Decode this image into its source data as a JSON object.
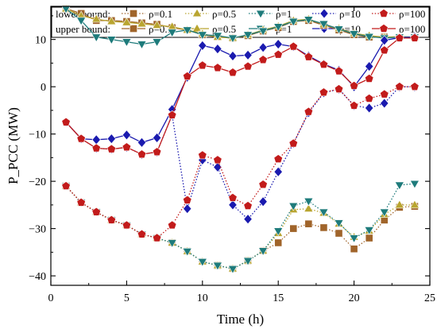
{
  "chart_data": {
    "type": "line",
    "xlabel": "Time (h)",
    "ylabel": "P_PCC (MW)",
    "xlim": [
      0,
      25
    ],
    "ylim": [
      -42,
      17
    ],
    "xticks": [
      0,
      5,
      10,
      15,
      20,
      25
    ],
    "yticks": [
      -40,
      -30,
      -20,
      -10,
      0,
      10
    ],
    "grid": false,
    "legend_position": "top",
    "legend": {
      "lower_label": "lower bound:",
      "upper_label": "upper bound:"
    },
    "x": [
      1,
      2,
      3,
      4,
      5,
      6,
      7,
      8,
      9,
      10,
      11,
      12,
      13,
      14,
      15,
      16,
      17,
      18,
      19,
      20,
      21,
      22,
      23,
      24
    ],
    "series": [
      {
        "name": "ρ=0.1",
        "group": "lower",
        "style": "dotted",
        "marker": "square",
        "color": "#A0642A",
        "values": [
          -21,
          -24.5,
          -26.5,
          -28.2,
          -29.3,
          -31.2,
          -32,
          -33,
          -34.8,
          -37,
          -37.8,
          -38.5,
          -36.8,
          -34.7,
          -33,
          -30,
          -29,
          -29.8,
          -31,
          -34.3,
          -32,
          -28.2,
          -25.5,
          -25.3
        ]
      },
      {
        "name": "ρ=0.5",
        "group": "lower",
        "style": "dotted",
        "marker": "triangle-up",
        "color": "#B9A530",
        "values": [
          -21,
          -24.5,
          -26.5,
          -28.2,
          -29.3,
          -31.2,
          -32,
          -33,
          -34.8,
          -37,
          -37.8,
          -38.5,
          -36.8,
          -34.7,
          -31,
          -26,
          -25.8,
          -26.7,
          -29,
          -31.8,
          -30.5,
          -27,
          -25,
          -25
        ]
      },
      {
        "name": "ρ=1",
        "group": "lower",
        "style": "dotted",
        "marker": "triangle-down",
        "color": "#1E7B7B",
        "values": [
          -21,
          -24.5,
          -26.5,
          -28.2,
          -29.3,
          -31.2,
          -32,
          -33,
          -34.8,
          -37,
          -37.8,
          -38.5,
          -36.8,
          -34.7,
          -30.5,
          -25.2,
          -24.2,
          -26.5,
          -28.8,
          -32,
          -30.3,
          -26.5,
          -20.8,
          -20.5
        ]
      },
      {
        "name": "ρ=10",
        "group": "lower",
        "style": "dotted",
        "marker": "diamond",
        "color": "#1A1AAF",
        "values": [
          -7.5,
          -11,
          -13,
          -13.2,
          -12.8,
          -14.3,
          -13.8,
          -6,
          -25.8,
          -15.5,
          -17,
          -25,
          -28,
          -24.3,
          -18,
          -12,
          -5.5,
          -1.3,
          -0.5,
          -4,
          -4.5,
          -3.5,
          0,
          0
        ]
      },
      {
        "name": "ρ=100",
        "group": "lower",
        "style": "dotted",
        "marker": "pentagon",
        "color": "#C21B1B",
        "values": [
          -21,
          -24.5,
          -26.5,
          -28.2,
          -29.3,
          -31.2,
          -32,
          -29.3,
          -24,
          -14.5,
          -15.5,
          -23.5,
          -25.2,
          -20.7,
          -15.3,
          -12,
          -5.3,
          -1.2,
          -0.5,
          -4,
          -2.5,
          -1.6,
          0,
          0
        ]
      },
      {
        "name": "ρ=0.1",
        "group": "upper",
        "style": "solid",
        "marker": "square",
        "color": "#A0642A",
        "values": [
          16.5,
          15.5,
          14,
          14,
          13.8,
          13.5,
          13.2,
          12.5,
          12,
          11,
          10.5,
          10.3,
          10.8,
          11.8,
          12.5,
          13.8,
          14,
          13,
          12,
          11,
          10.5,
          10.5,
          10.5,
          10.5
        ]
      },
      {
        "name": "ρ=0.5",
        "group": "upper",
        "style": "solid",
        "marker": "triangle-up",
        "color": "#B9A530",
        "values": [
          16.5,
          15,
          14.3,
          13.8,
          13.6,
          13.3,
          13,
          12.7,
          12,
          11.2,
          10.5,
          10.3,
          11,
          12,
          12.8,
          14,
          14.3,
          13.2,
          12.3,
          11.3,
          10.8,
          10.5,
          10.6,
          10.5
        ]
      },
      {
        "name": "ρ=1",
        "group": "upper",
        "style": "solid",
        "marker": "triangle-down",
        "color": "#1E7B7B",
        "values": [
          16.5,
          14,
          10.5,
          10,
          9.5,
          9,
          9.5,
          11.5,
          12,
          11,
          10.8,
          10.3,
          11,
          11.8,
          12.7,
          13.8,
          14.2,
          13.3,
          12.2,
          11.2,
          10.6,
          10.3,
          10.5,
          10.5
        ]
      },
      {
        "name": "ρ=10",
        "group": "upper",
        "style": "solid",
        "marker": "diamond",
        "color": "#1A1AAF",
        "values": [
          -7.5,
          -11,
          -11.2,
          -11,
          -10.2,
          -11.8,
          -10.8,
          -4.8,
          2,
          8.7,
          8,
          6.5,
          6.7,
          8.3,
          9,
          8.5,
          6.5,
          4.8,
          3.5,
          0,
          4.3,
          9.8,
          10.4,
          10.5
        ]
      },
      {
        "name": "ρ=100",
        "group": "upper",
        "style": "solid",
        "marker": "pentagon",
        "color": "#C21B1B",
        "values": [
          -7.5,
          -11,
          -13,
          -13.2,
          -12.8,
          -14.3,
          -13.8,
          -6,
          2.2,
          4.5,
          4,
          3,
          4.3,
          5.7,
          6.8,
          8.5,
          6.3,
          4.7,
          3.3,
          0.2,
          1.7,
          7.7,
          10.3,
          10.3
        ]
      }
    ]
  }
}
